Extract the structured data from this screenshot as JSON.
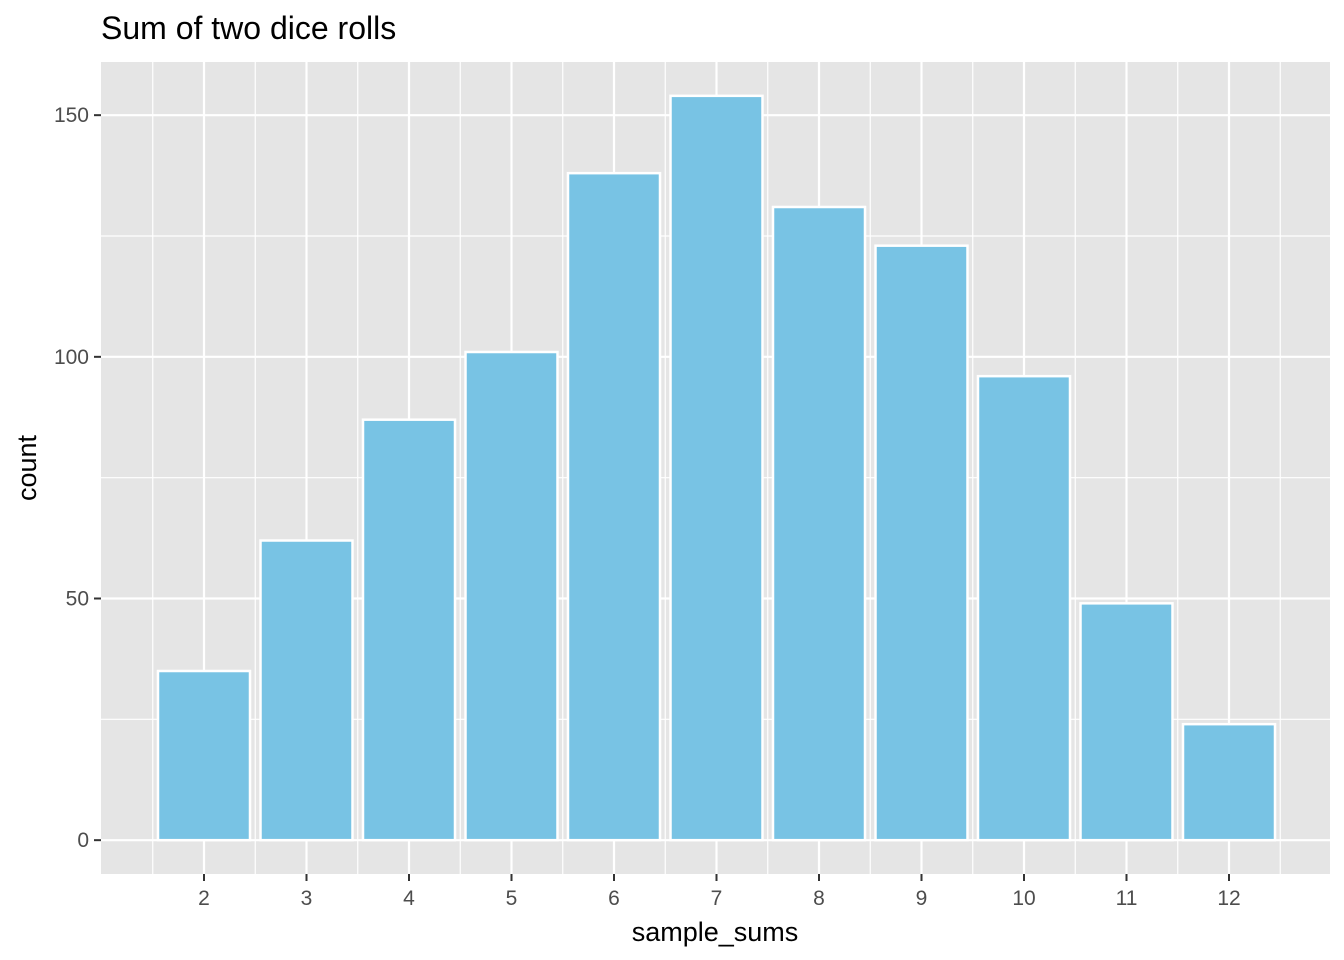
{
  "chart_data": {
    "type": "bar",
    "title": "Sum of two dice rolls",
    "xlabel": "sample_sums",
    "ylabel": "count",
    "categories": [
      "2",
      "3",
      "4",
      "5",
      "6",
      "7",
      "8",
      "9",
      "10",
      "11",
      "12"
    ],
    "values": [
      35,
      62,
      87,
      101,
      138,
      154,
      131,
      123,
      96,
      49,
      24
    ],
    "ylim": [
      -7,
      161
    ],
    "y_ticks": [
      0,
      50,
      100,
      150
    ],
    "y_tick_labels": [
      "0",
      "50",
      "100",
      "150"
    ],
    "grid": true,
    "legend": "none",
    "colors": {
      "bar_fill": "#78c3e4",
      "bar_stroke": "#ffffff",
      "panel_background": "#e5e5e5",
      "grid": "#ffffff",
      "tick_mark": "#333333"
    }
  }
}
